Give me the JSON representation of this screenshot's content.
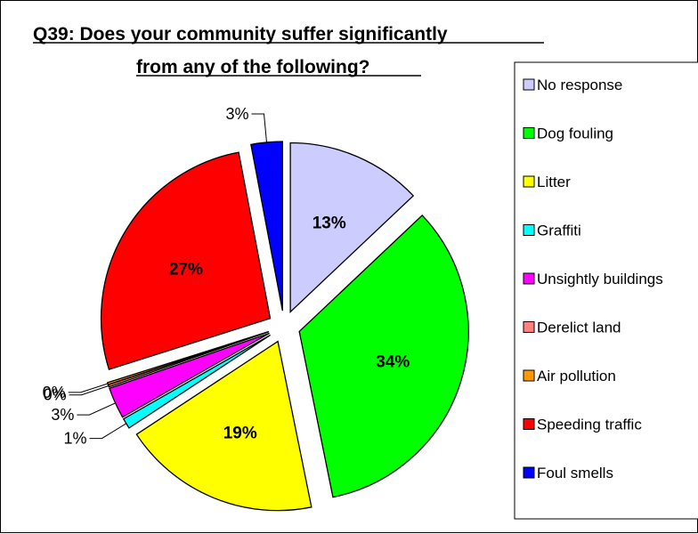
{
  "chart_data": {
    "type": "pie",
    "title_line1": "Q39:  Does your community suffer significantly",
    "title_line2": "from any of the following",
    "title_suffix": "?",
    "categories": [
      "No response",
      "Dog fouling",
      "Litter",
      "Graffiti",
      "Unsightly buildings",
      "Derelict land",
      "Air pollution",
      "Speeding traffic",
      "Foul smells"
    ],
    "values": [
      13,
      34,
      19,
      1,
      3,
      0.2,
      0.2,
      27,
      3
    ],
    "labels": [
      "13%",
      "34%",
      "19%",
      "1%",
      "3%",
      "0%",
      "0%",
      "27%",
      "3%"
    ],
    "colors": [
      "#CCCCFF",
      "#00FF00",
      "#FFFF00",
      "#00FFFF",
      "#FF00FF",
      "#FF8080",
      "#FF9900",
      "#FF0000",
      "#0000FF"
    ],
    "exploded": true,
    "legend_position": "right"
  }
}
